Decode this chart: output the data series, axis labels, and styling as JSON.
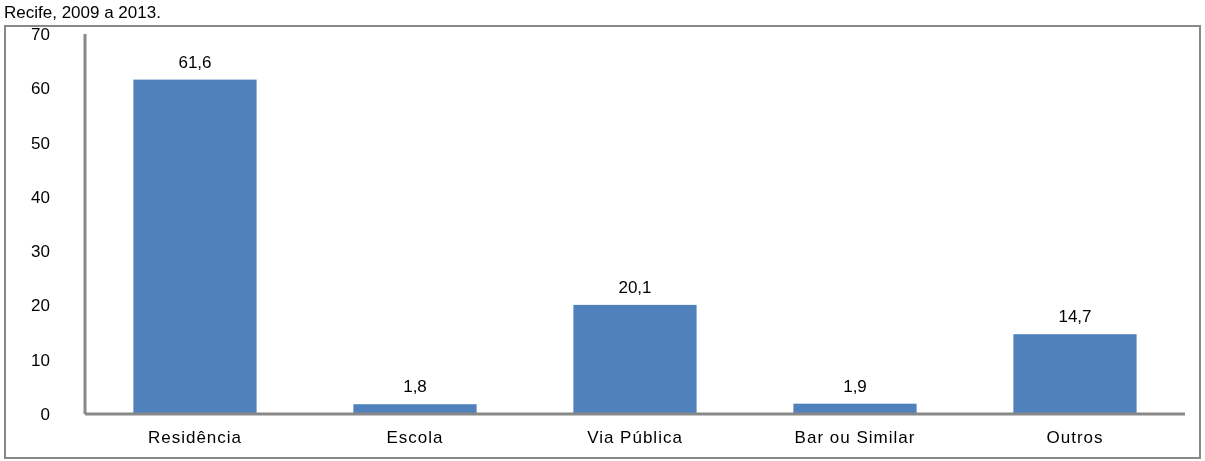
{
  "chart_data": {
    "type": "bar",
    "title": "Recife, 2009 a 2013.",
    "categories": [
      "Residência",
      "Escola",
      "Via Pública",
      "Bar ou Similar",
      "Outros"
    ],
    "values": [
      61.6,
      1.8,
      20.1,
      1.9,
      14.7
    ],
    "color": "#4f81bd",
    "value_labels": [
      "61,6",
      "1,8",
      "20,1",
      "1,9",
      "14,7"
    ],
    "ylim": [
      0,
      70
    ],
    "yticks": [
      0,
      10,
      20,
      30,
      40,
      50,
      60,
      70
    ],
    "grid": false
  }
}
